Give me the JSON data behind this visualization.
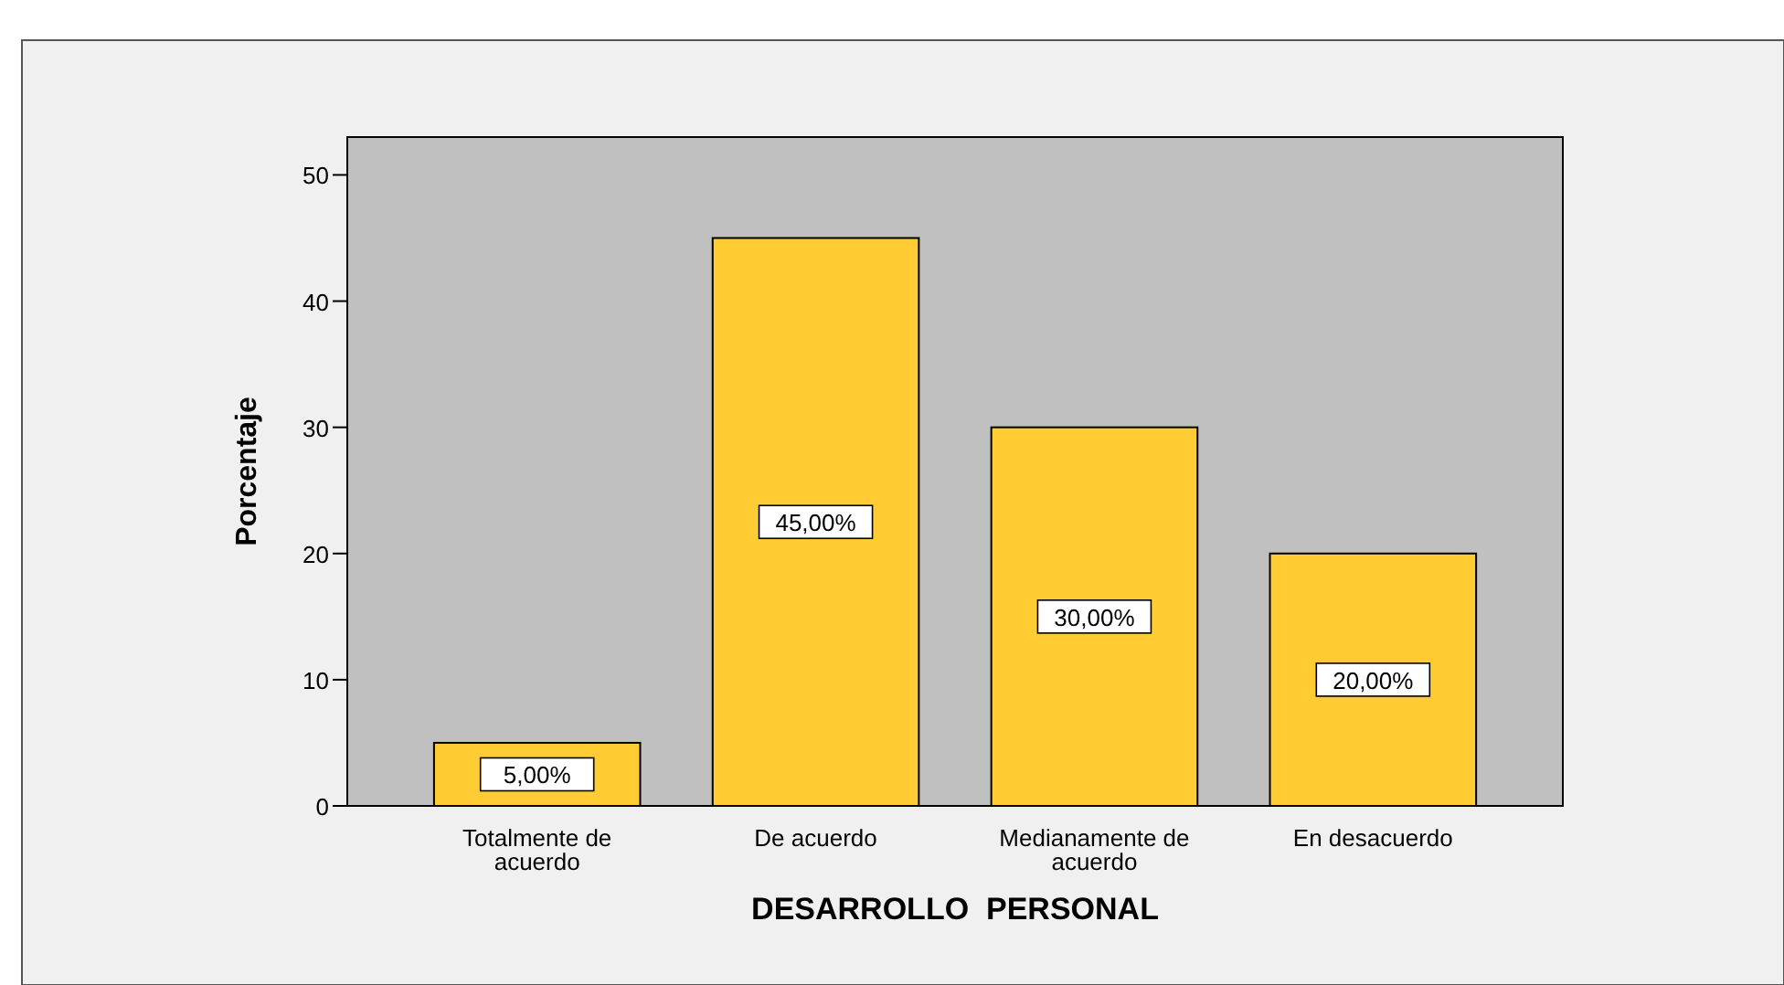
{
  "chart_data": {
    "type": "bar",
    "xlabel": "DESARROLLO  PERSONAL",
    "ylabel": "Porcentaje",
    "categories": [
      "Totalmente de acuerdo",
      "De acuerdo",
      "Medianamente de acuerdo",
      "En desacuerdo"
    ],
    "values": [
      5,
      45,
      30,
      20
    ],
    "color": "#ffcc33",
    "value_labels": [
      "5,00%",
      "45,00%",
      "30,00%",
      "20,00%"
    ],
    "ylim": [
      0,
      53
    ],
    "yticks": [
      0,
      10,
      20,
      30,
      40,
      50
    ],
    "grid": false
  }
}
